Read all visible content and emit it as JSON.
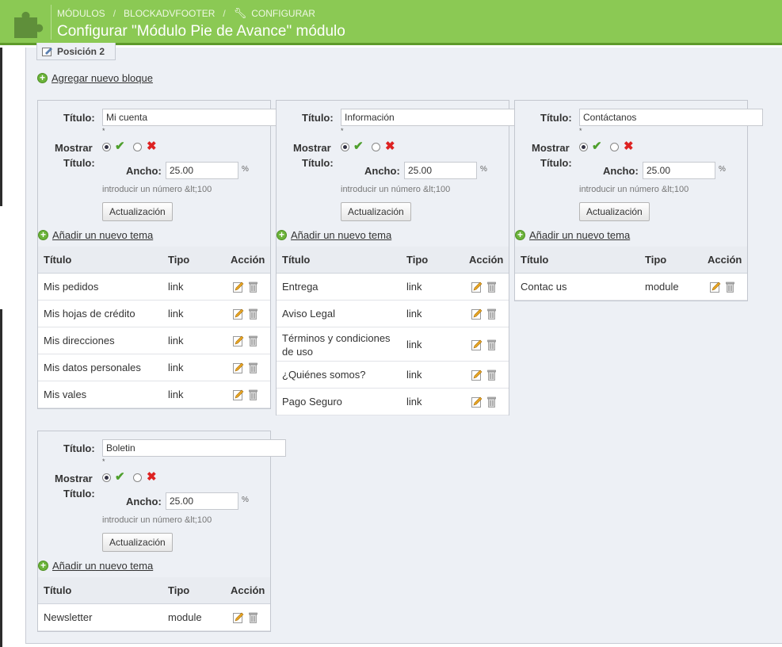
{
  "header": {
    "breadcrumbs": [
      "MÓDULOS",
      "BLOCKADVFOOTER",
      "CONFIGURAR"
    ],
    "separator": "/",
    "title": "Configurar \"Módulo Pie de Avance\" módulo"
  },
  "position_tab": "Posición 2",
  "add_block_link": "Agregar nuevo bloque",
  "labels": {
    "title": "Título:",
    "show_line1": "Mostrar",
    "show_line2": "Título:",
    "width": "Ancho:",
    "percent": "%",
    "hint": "introducir un número &lt;100",
    "update": "Actualización",
    "add_item": "Añadir un nuevo tema",
    "col_title": "Título",
    "col_type": "Tipo",
    "col_action": "Acción",
    "required": "*"
  },
  "blocks": [
    {
      "title": "Mi cuenta",
      "width": "25.00",
      "items": [
        {
          "title": "Mis pedidos",
          "type": "link"
        },
        {
          "title": "Mis hojas de crédito",
          "type": "link"
        },
        {
          "title": "Mis direcciones",
          "type": "link"
        },
        {
          "title": "Mis datos personales",
          "type": "link"
        },
        {
          "title": "Mis vales",
          "type": "link"
        }
      ]
    },
    {
      "title": "Información",
      "width": "25.00",
      "items": [
        {
          "title": "Entrega",
          "type": "link"
        },
        {
          "title": "Aviso Legal",
          "type": "link"
        },
        {
          "title": "Términos y condiciones de uso",
          "type": "link"
        },
        {
          "title": "¿Quiénes somos?",
          "type": "link"
        },
        {
          "title": "Pago Seguro",
          "type": "link"
        }
      ]
    },
    {
      "title": "Contáctanos",
      "width": "25.00",
      "items": [
        {
          "title": "Contac us",
          "type": "module"
        }
      ]
    },
    {
      "title": "Boletin",
      "width": "25.00",
      "items": [
        {
          "title": "Newsletter",
          "type": "module"
        }
      ]
    }
  ],
  "colors": {
    "header_green": "#8bc954",
    "panel_bg": "#edf0f5",
    "check_green": "#4e9f2c",
    "cross_red": "#dd2222"
  }
}
